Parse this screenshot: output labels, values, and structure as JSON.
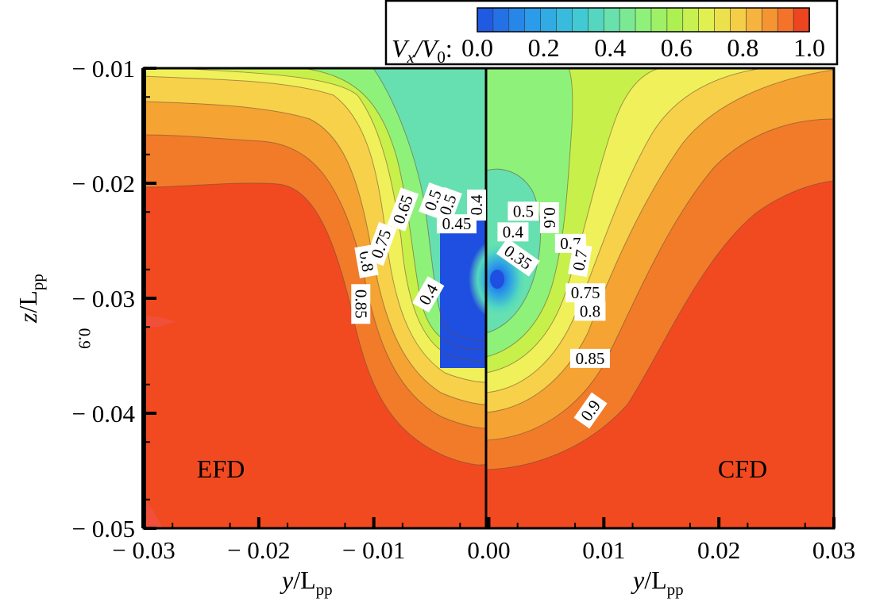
{
  "chart_data": {
    "type": "heatmap",
    "subtype": "filled-contour",
    "colorbar": {
      "label_main": "V",
      "label_sub_x": "x",
      "label_mid": "/V",
      "label_sub_0": "0",
      "label_colon": ":",
      "ticks": [
        "0.0",
        "0.2",
        "0.4",
        "0.6",
        "0.8",
        "1.0"
      ],
      "range": [
        0,
        1
      ],
      "levels": 21,
      "placement": "top-right"
    },
    "xaxis": {
      "range": [
        -0.03,
        0.03
      ],
      "ticks": [
        "− 0.03",
        "− 0.02",
        "− 0.01",
        "0.00",
        "0.01",
        "0.02",
        "0.03"
      ],
      "label_left": {
        "main": "y",
        "slash": "/L",
        "sub": "pp"
      },
      "label_right": {
        "main": "y",
        "slash": "/L",
        "sub": "pp"
      }
    },
    "yaxis": {
      "range": [
        -0.05,
        -0.01
      ],
      "ticks": [
        "− 0.01",
        "− 0.02",
        "− 0.03",
        "− 0.04",
        "− 0.05"
      ],
      "label": {
        "main": "z",
        "slash": "/L",
        "sub": "pp"
      }
    },
    "panels": [
      {
        "name": "EFD",
        "side": "left",
        "x_range": [
          -0.03,
          0.0
        ]
      },
      {
        "name": "CFD",
        "side": "right",
        "x_range": [
          0.0,
          0.03
        ]
      }
    ],
    "contour_labels": [
      {
        "text": "0.9",
        "y": -0.0352,
        "z": -0.0335,
        "rotation": 90
      },
      {
        "text": "0.85",
        "y": -0.0112,
        "z": -0.0305,
        "rotation": 90
      },
      {
        "text": "0.8",
        "y": -0.0107,
        "z": -0.0268,
        "rotation": 80
      },
      {
        "text": "0.75",
        "y": -0.0093,
        "z": -0.0253,
        "rotation": -70
      },
      {
        "text": "0.65",
        "y": -0.0074,
        "z": -0.0223,
        "rotation": -70
      },
      {
        "text": "0.5",
        "y": -0.0048,
        "z": -0.0215,
        "rotation": -70
      },
      {
        "text": "0.5",
        "y": -0.0035,
        "z": -0.0219,
        "rotation": -70
      },
      {
        "text": "0.4",
        "y": -0.001,
        "z": -0.0219,
        "rotation": -90
      },
      {
        "text": "0.45",
        "y": -0.0028,
        "z": -0.0236,
        "rotation": 0
      },
      {
        "text": "0.4",
        "y": -0.0052,
        "z": -0.0297,
        "rotation": -60
      },
      {
        "text": "0.5",
        "y": 0.003,
        "z": -0.0225,
        "rotation": 0
      },
      {
        "text": "0.6",
        "y": 0.0052,
        "z": -0.023,
        "rotation": 90
      },
      {
        "text": "0.4",
        "y": 0.0021,
        "z": -0.0243,
        "rotation": 0
      },
      {
        "text": "0.35",
        "y": 0.0025,
        "z": -0.0265,
        "rotation": 35
      },
      {
        "text": "0.7",
        "y": 0.0071,
        "z": -0.0253,
        "rotation": 0
      },
      {
        "text": "0.7",
        "y": 0.008,
        "z": -0.0267,
        "rotation": -80
      },
      {
        "text": "0.75",
        "y": 0.0084,
        "z": -0.0296,
        "rotation": 0
      },
      {
        "text": "0.8",
        "y": 0.0088,
        "z": -0.0312,
        "rotation": 0
      },
      {
        "text": "0.85",
        "y": 0.0088,
        "z": -0.0353,
        "rotation": 0
      },
      {
        "text": "0.9",
        "y": 0.0089,
        "z": -0.0398,
        "rotation": -55
      }
    ],
    "colors": {
      "v0.00": "#1f4fe0",
      "v0.35": "#3ec8d8",
      "v0.45": "#66e0b0",
      "v0.55": "#8ef27a",
      "v0.65": "#c8f04a",
      "v0.75": "#f0f05a",
      "v0.80": "#f7d14a",
      "v0.85": "#f5a332",
      "v0.90": "#f27b2a",
      "v1.00": "#f24a20"
    }
  }
}
